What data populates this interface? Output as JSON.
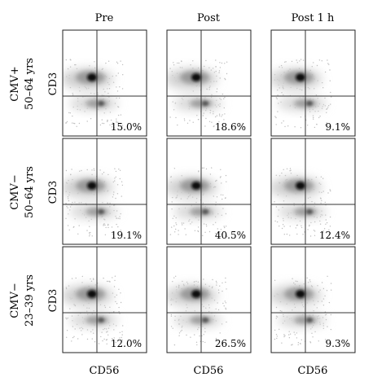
{
  "columns": [
    "Pre",
    "Post",
    "Post 1 h"
  ],
  "rows": [
    {
      "label_line1": "CMV+",
      "label_line2": "50–64 yrs"
    },
    {
      "label_line1": "CMV−",
      "label_line2": "50–64 yrs"
    },
    {
      "label_line1": "CMV−",
      "label_line2": "23–39 yrs"
    }
  ],
  "y_axis_label": "CD3",
  "x_axis_label": "CD56",
  "chart_data": {
    "type": "scatter",
    "subtype": "flow-cytometry density plot grid",
    "xlabel": "CD56",
    "ylabel": "CD3",
    "columns": [
      "Pre",
      "Post",
      "Post 1 h"
    ],
    "rows": [
      "CMV+ 50–64 yrs",
      "CMV− 50–64 yrs",
      "CMV− 23–39 yrs"
    ],
    "gated_percentages": [
      [
        "15.0%",
        "18.6%",
        "9.1%"
      ],
      [
        "19.1%",
        "40.5%",
        "12.4%"
      ],
      [
        "12.0%",
        "26.5%",
        "9.3%"
      ]
    ],
    "gate_quadrant": "bottom-right",
    "grid": false
  }
}
